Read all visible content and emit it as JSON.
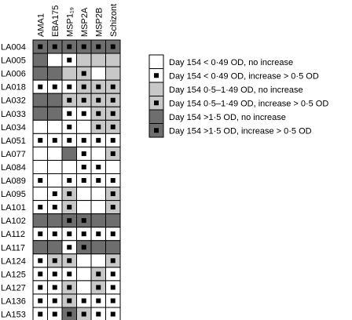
{
  "chart_data": {
    "type": "heatmap",
    "columns": [
      "AMA1",
      "EBA175",
      "MSP1₁₉",
      "MSP2A",
      "MSP2B",
      "Schizont"
    ],
    "rows": [
      "LA004",
      "LA005",
      "LA006",
      "LA018",
      "LA032",
      "LA033",
      "LA034",
      "LA051",
      "LA077",
      "LA084",
      "LA089",
      "LA095",
      "LA101",
      "LA102",
      "LA112",
      "LA117",
      "LA124",
      "LA125",
      "LA127",
      "LA136",
      "LA153"
    ],
    "legend": [
      {
        "label": "Day 154 < 0·49 OD, no increase",
        "fill": "#ffffff",
        "marker": false
      },
      {
        "label": "Day 154 < 0·49 OD, increase > 0·5 OD",
        "fill": "#ffffff",
        "marker": true
      },
      {
        "label": "Day 154 0·5–1·49 OD, no increase",
        "fill": "#c8c8c8",
        "marker": false
      },
      {
        "label": "Day 154 0·5–1·49 OD, increase > 0·5 OD",
        "fill": "#c8c8c8",
        "marker": true
      },
      {
        "label": "Day 154 >1·5 OD, no increase",
        "fill": "#6e6e6e",
        "marker": false
      },
      {
        "label": "Day 154 >1·5 OD, increase > 0·5 OD",
        "fill": "#6e6e6e",
        "marker": true
      }
    ],
    "values": [
      [
        5,
        5,
        5,
        5,
        5,
        5
      ],
      [
        4,
        0,
        1,
        2,
        2,
        2
      ],
      [
        4,
        4,
        2,
        3,
        0,
        2
      ],
      [
        1,
        1,
        1,
        3,
        3,
        3
      ],
      [
        4,
        4,
        3,
        3,
        3,
        3
      ],
      [
        4,
        4,
        1,
        1,
        3,
        3
      ],
      [
        0,
        0,
        1,
        0,
        3,
        3
      ],
      [
        1,
        1,
        1,
        1,
        1,
        1
      ],
      [
        0,
        0,
        4,
        1,
        0,
        3
      ],
      [
        0,
        0,
        0,
        1,
        1,
        0
      ],
      [
        1,
        0,
        1,
        1,
        1,
        1
      ],
      [
        0,
        1,
        3,
        0,
        0,
        3
      ],
      [
        1,
        1,
        3,
        0,
        0,
        3
      ],
      [
        4,
        4,
        5,
        5,
        4,
        4
      ],
      [
        1,
        1,
        1,
        1,
        1,
        1
      ],
      [
        4,
        4,
        1,
        5,
        4,
        4
      ],
      [
        1,
        3,
        3,
        0,
        0,
        3
      ],
      [
        1,
        1,
        1,
        0,
        3,
        1
      ],
      [
        1,
        1,
        3,
        0,
        3,
        1
      ],
      [
        1,
        1,
        3,
        1,
        1,
        1
      ],
      [
        1,
        1,
        5,
        3,
        1,
        1
      ]
    ]
  }
}
